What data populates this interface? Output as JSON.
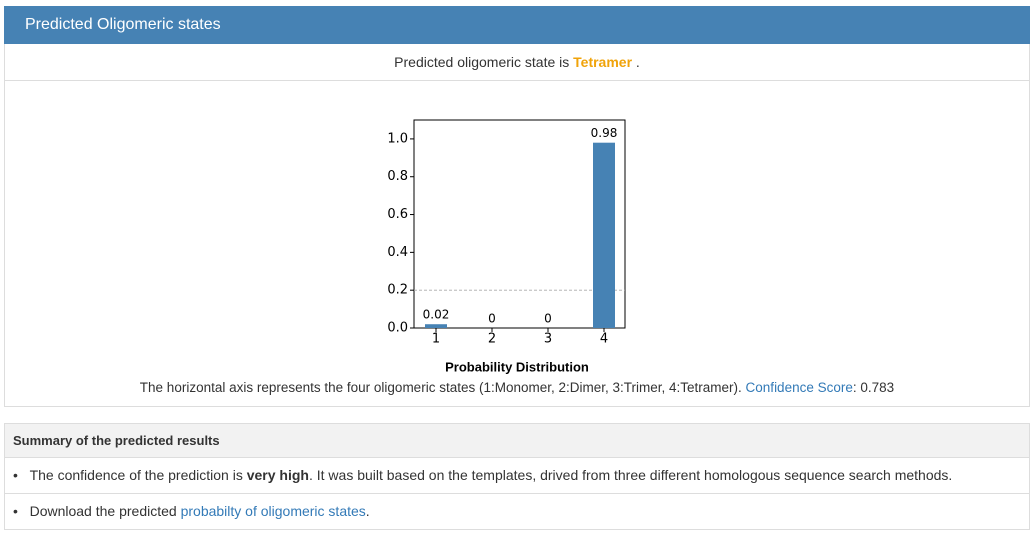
{
  "header": {
    "title": "Predicted Oligomeric states"
  },
  "prediction": {
    "prefix": "Predicted oligomeric state is",
    "state": "Tetramer",
    "suffix": "."
  },
  "chart_data": {
    "type": "bar",
    "categories": [
      "1",
      "2",
      "3",
      "4"
    ],
    "values": [
      0.02,
      0,
      0,
      0.98
    ],
    "color": "#4682b4",
    "ylim": [
      0,
      1.1
    ],
    "yticks": [
      {
        "value": 0,
        "label": "0.0"
      },
      0.2,
      0.4,
      0.6,
      0.8,
      {
        "value": 1,
        "label": "1.0"
      }
    ],
    "hline": 0.2,
    "xlabel": "Probability Distribution"
  },
  "caption": {
    "text": "The horizontal axis represents the four oligomeric states (1:Monomer, 2:Dimer, 3:Trimer, 4:Tetramer).",
    "link": "Confidence Score",
    "separator": ":",
    "value": "0.783"
  },
  "summary": {
    "title": "Summary of the predicted results",
    "items": [
      {
        "before": "The confidence of the prediction is",
        "bold": "very high",
        "after": ". It was built based on the templates, drived from three different homologous sequence search methods."
      },
      {
        "before": "Download the predicted",
        "link": "probabilty of oligomeric states",
        "after": "."
      }
    ]
  }
}
